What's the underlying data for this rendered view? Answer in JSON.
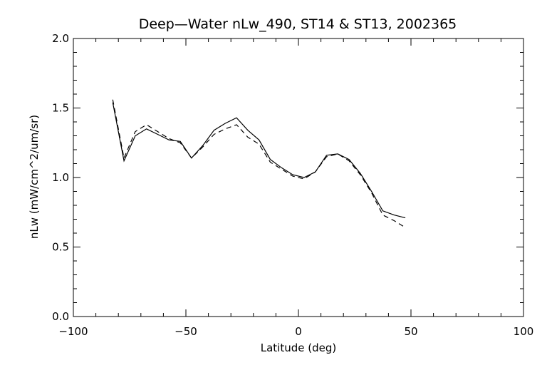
{
  "chart_data": {
    "type": "line",
    "title": "Deep—Water nLw_490, ST14 & ST13, 2002365",
    "xlabel": "Latitude (deg)",
    "ylabel": "nLw (mW/cm^2/um/sr)",
    "xlim": [
      -100,
      100
    ],
    "ylim": [
      0.0,
      2.0
    ],
    "xticks": [
      -100,
      -50,
      0,
      50,
      100
    ],
    "yticks": [
      0.0,
      0.5,
      1.0,
      1.5,
      2.0
    ],
    "xtick_labels": [
      "−100",
      "−50",
      "0",
      "50",
      "100"
    ],
    "ytick_labels": [
      "0.0",
      "0.5",
      "1.0",
      "1.5",
      "2.0"
    ],
    "grid": false,
    "series": [
      {
        "style": "solid",
        "x": [
          -82.5,
          -77.5,
          -72.5,
          -67.5,
          -62.5,
          -57.5,
          -52.5,
          -47.5,
          -42.5,
          -37.5,
          -32.5,
          -27.5,
          -22.5,
          -17.5,
          -12.5,
          -7.5,
          -2.5,
          2.5,
          7.5,
          12.5,
          17.5,
          22.5,
          27.5,
          32.5,
          37.5,
          42.5,
          47.5
        ],
        "y": [
          1.54,
          1.12,
          1.3,
          1.35,
          1.31,
          1.27,
          1.26,
          1.14,
          1.23,
          1.34,
          1.39,
          1.43,
          1.34,
          1.27,
          1.13,
          1.07,
          1.02,
          1.0,
          1.04,
          1.16,
          1.17,
          1.13,
          1.03,
          0.9,
          0.76,
          0.73,
          0.71
        ]
      },
      {
        "style": "dashed",
        "x": [
          -82.5,
          -77.5,
          -72.5,
          -67.5,
          -62.5,
          -57.5,
          -52.5,
          -47.5,
          -42.5,
          -37.5,
          -32.5,
          -27.5,
          -22.5,
          -17.5,
          -12.5,
          -7.5,
          -2.5,
          2.5,
          7.5,
          12.5,
          17.5,
          22.5,
          27.5,
          32.5,
          37.5,
          42.5,
          47.5
        ],
        "y": [
          1.56,
          1.14,
          1.33,
          1.38,
          1.33,
          1.28,
          1.25,
          1.14,
          1.22,
          1.31,
          1.35,
          1.38,
          1.29,
          1.24,
          1.11,
          1.06,
          1.01,
          0.99,
          1.04,
          1.15,
          1.17,
          1.12,
          1.02,
          0.89,
          0.73,
          0.69,
          0.64
        ]
      }
    ]
  }
}
